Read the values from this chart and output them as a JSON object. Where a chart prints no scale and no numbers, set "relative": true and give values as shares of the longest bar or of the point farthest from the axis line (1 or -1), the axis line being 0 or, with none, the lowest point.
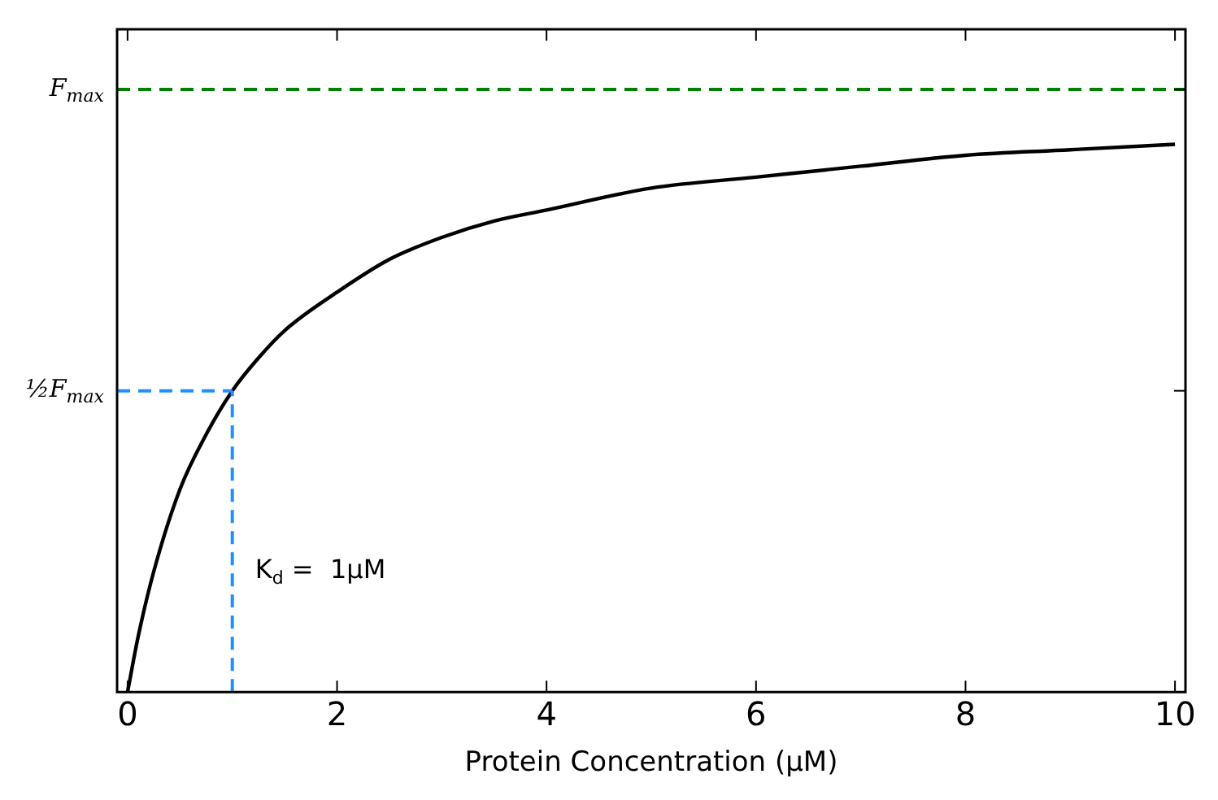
{
  "chart_data": {
    "type": "line",
    "xlabel": "Protein Concentration (μM)",
    "relative": true,
    "x": [
      0,
      0.1,
      0.25,
      0.5,
      0.75,
      1,
      1.25,
      1.5,
      2,
      2.5,
      3,
      3.5,
      4,
      5,
      6,
      7,
      8,
      9,
      10
    ],
    "series": [
      {
        "color": "#000000",
        "values": [
          0,
          0.1,
          0.22,
          0.37,
          0.47,
          0.55,
          0.61,
          0.66,
          0.73,
          0.79,
          0.83,
          0.86,
          0.88,
          0.92,
          0.94,
          0.96,
          0.98,
          0.99,
          1
        ]
      }
    ],
    "xlim": [
      -0.1,
      10.1
    ],
    "xticks": [
      0,
      2,
      4,
      6,
      8,
      10
    ],
    "ref_lines": [
      {
        "axis": "y",
        "value": 1.1,
        "label": "F$_{max}$",
        "color": "#008000",
        "line_style": "dashed"
      },
      {
        "axis": "y",
        "value": 0.55,
        "label": "½F$_{max}$",
        "color": "#1e90ff",
        "line_style": "dashed"
      },
      {
        "axis": "x",
        "value": 1,
        "color": "#1e90ff",
        "line_style": "dashed"
      }
    ],
    "annotations": [
      {
        "text": "K$_{d}$ =  1μM",
        "x": 1,
        "y": 0.22
      }
    ],
    "grid": false,
    "legend": false,
    "marker": "none",
    "line_style": "solid"
  }
}
